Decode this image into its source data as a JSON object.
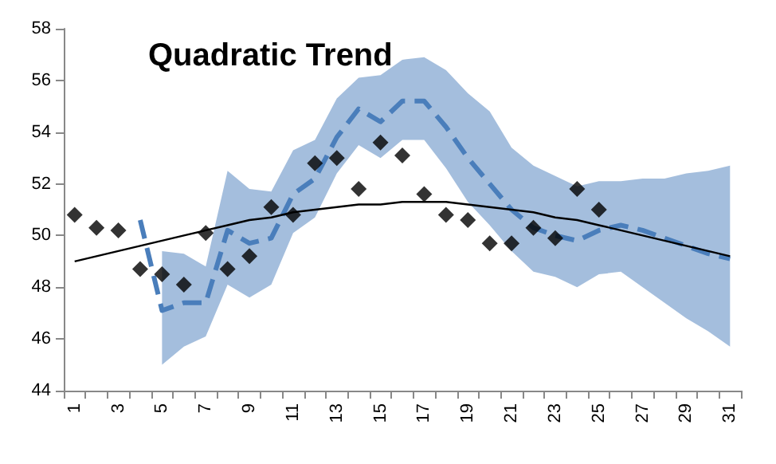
{
  "chart_data": {
    "type": "scatter",
    "title": "Quadratic Trend",
    "categories": [
      "1",
      null,
      "3",
      null,
      "5",
      null,
      "7",
      null,
      "9",
      null,
      "11",
      null,
      "13",
      null,
      "15",
      null,
      "17",
      null,
      "19",
      null,
      "21",
      null,
      "23",
      null,
      "25",
      null,
      "27",
      null,
      "29",
      null,
      "31"
    ],
    "ylim": [
      44,
      58
    ],
    "yticks": [
      44,
      46,
      48,
      50,
      52,
      54,
      56,
      58
    ],
    "grid": false,
    "series": [
      {
        "marker": "diamond",
        "color": "#000000",
        "values": [
          50.8,
          50.3,
          50.2,
          48.7,
          48.5,
          48.1,
          50.1,
          48.7,
          49.2,
          51.1,
          50.8,
          52.8,
          53.0,
          51.8,
          53.6,
          53.1,
          51.6,
          50.8,
          50.6,
          49.7,
          49.7,
          50.3,
          49.9,
          51.8,
          51.0,
          null,
          null,
          null,
          null,
          null,
          null
        ]
      },
      {
        "type": "line",
        "marker": "none",
        "line_style": "dashed",
        "color": "#4a7ebb",
        "values": [
          null,
          null,
          null,
          50.6,
          47.1,
          47.4,
          47.4,
          50.2,
          49.7,
          49.9,
          51.6,
          52.2,
          53.8,
          54.9,
          54.4,
          55.2,
          55.2,
          54.2,
          53.0,
          52.0,
          51.0,
          50.3,
          50.0,
          49.8,
          50.2,
          50.4,
          50.2,
          49.9,
          49.6,
          49.3,
          49.1
        ],
        "lower": [
          null,
          null,
          null,
          null,
          45.0,
          45.7,
          46.1,
          48.1,
          47.6,
          48.1,
          50.1,
          50.7,
          52.4,
          53.5,
          53.0,
          53.7,
          53.7,
          52.6,
          51.3,
          50.4,
          49.4,
          48.6,
          48.4,
          48.0,
          48.5,
          48.6,
          48.0,
          47.4,
          46.8,
          46.3,
          45.7
        ],
        "upper": [
          null,
          null,
          null,
          null,
          49.4,
          49.3,
          48.8,
          52.5,
          51.8,
          51.7,
          53.3,
          53.7,
          55.3,
          56.1,
          56.2,
          56.8,
          56.9,
          56.4,
          55.5,
          54.8,
          53.4,
          52.7,
          52.3,
          51.9,
          52.1,
          52.1,
          52.2,
          52.2,
          52.4,
          52.5,
          52.7
        ]
      },
      {
        "type": "line",
        "marker": "none",
        "line_style": "solid",
        "color": "#000000",
        "values": [
          49.0,
          49.2,
          49.4,
          49.6,
          49.8,
          50.0,
          50.2,
          50.4,
          50.6,
          50.7,
          50.9,
          51.0,
          51.1,
          51.2,
          51.2,
          51.3,
          51.3,
          51.3,
          51.2,
          51.1,
          51.0,
          50.9,
          50.7,
          50.6,
          50.4,
          50.2,
          50.0,
          49.8,
          49.6,
          49.4,
          49.2
        ]
      }
    ]
  }
}
